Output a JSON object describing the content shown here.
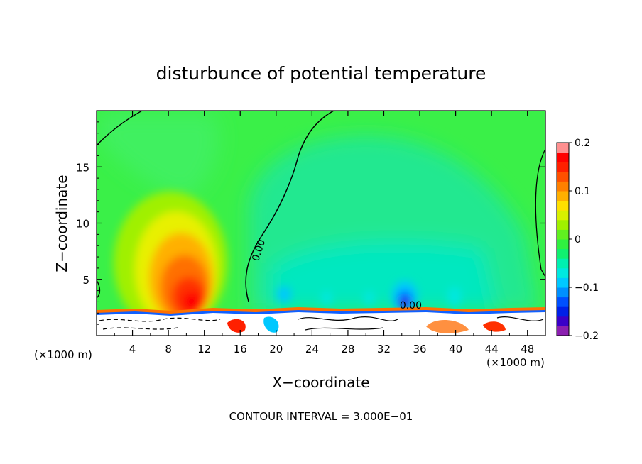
{
  "chart_data": {
    "type": "heatmap",
    "title": "disturbunce of potential temperature",
    "xlabel": "X−coordinate",
    "ylabel": "Z−coordinate",
    "x_unit_left": "(×1000 m)",
    "x_unit_right": "(×1000 m)",
    "xlim": [
      0,
      50
    ],
    "ylim": [
      0,
      20
    ],
    "x_ticks": [
      4,
      8,
      12,
      16,
      20,
      24,
      28,
      32,
      36,
      40,
      44,
      48
    ],
    "x_tick_labels": [
      "4",
      "8",
      "12",
      "16",
      "20",
      "24",
      "28",
      "32",
      "36",
      "40",
      "44",
      "48"
    ],
    "y_ticks": [
      5,
      10,
      15
    ],
    "y_tick_labels": [
      "5",
      "10",
      "15"
    ],
    "contour_labels": [
      {
        "text": "0.00",
        "x": 18.4,
        "y": 7.5
      },
      {
        "text": "0.00",
        "x": 35.0,
        "y": 2.4
      }
    ],
    "colorbar": {
      "range": [
        -0.2,
        0.2
      ],
      "tick_values": [
        0.2,
        0.1,
        0,
        -0.1,
        -0.2
      ],
      "tick_labels": [
        "0.2",
        "0.1",
        "0",
        "−0.1",
        "−0.2"
      ],
      "colors": [
        "#8b1fb0",
        "#3a00c8",
        "#0020e8",
        "#0050ff",
        "#0090ff",
        "#00c8ff",
        "#00e8e0",
        "#00f0b0",
        "#10f070",
        "#30f040",
        "#60f020",
        "#a0f000",
        "#d8f000",
        "#ffe000",
        "#ffb000",
        "#ff8000",
        "#ff5000",
        "#ff2000",
        "#ff0000",
        "#ff9090"
      ]
    },
    "features": [
      {
        "name": "warm anomaly",
        "x_center": 10,
        "z_center": 4,
        "peak": 0.2
      },
      {
        "name": "cool region",
        "x_center": 33,
        "z_center": 10,
        "peak": -0.05
      },
      {
        "name": "cold spot",
        "x_center": 34,
        "z_center": 3,
        "peak": -0.2
      }
    ],
    "footer": "CONTOUR INTERVAL = 3.000E−01"
  }
}
